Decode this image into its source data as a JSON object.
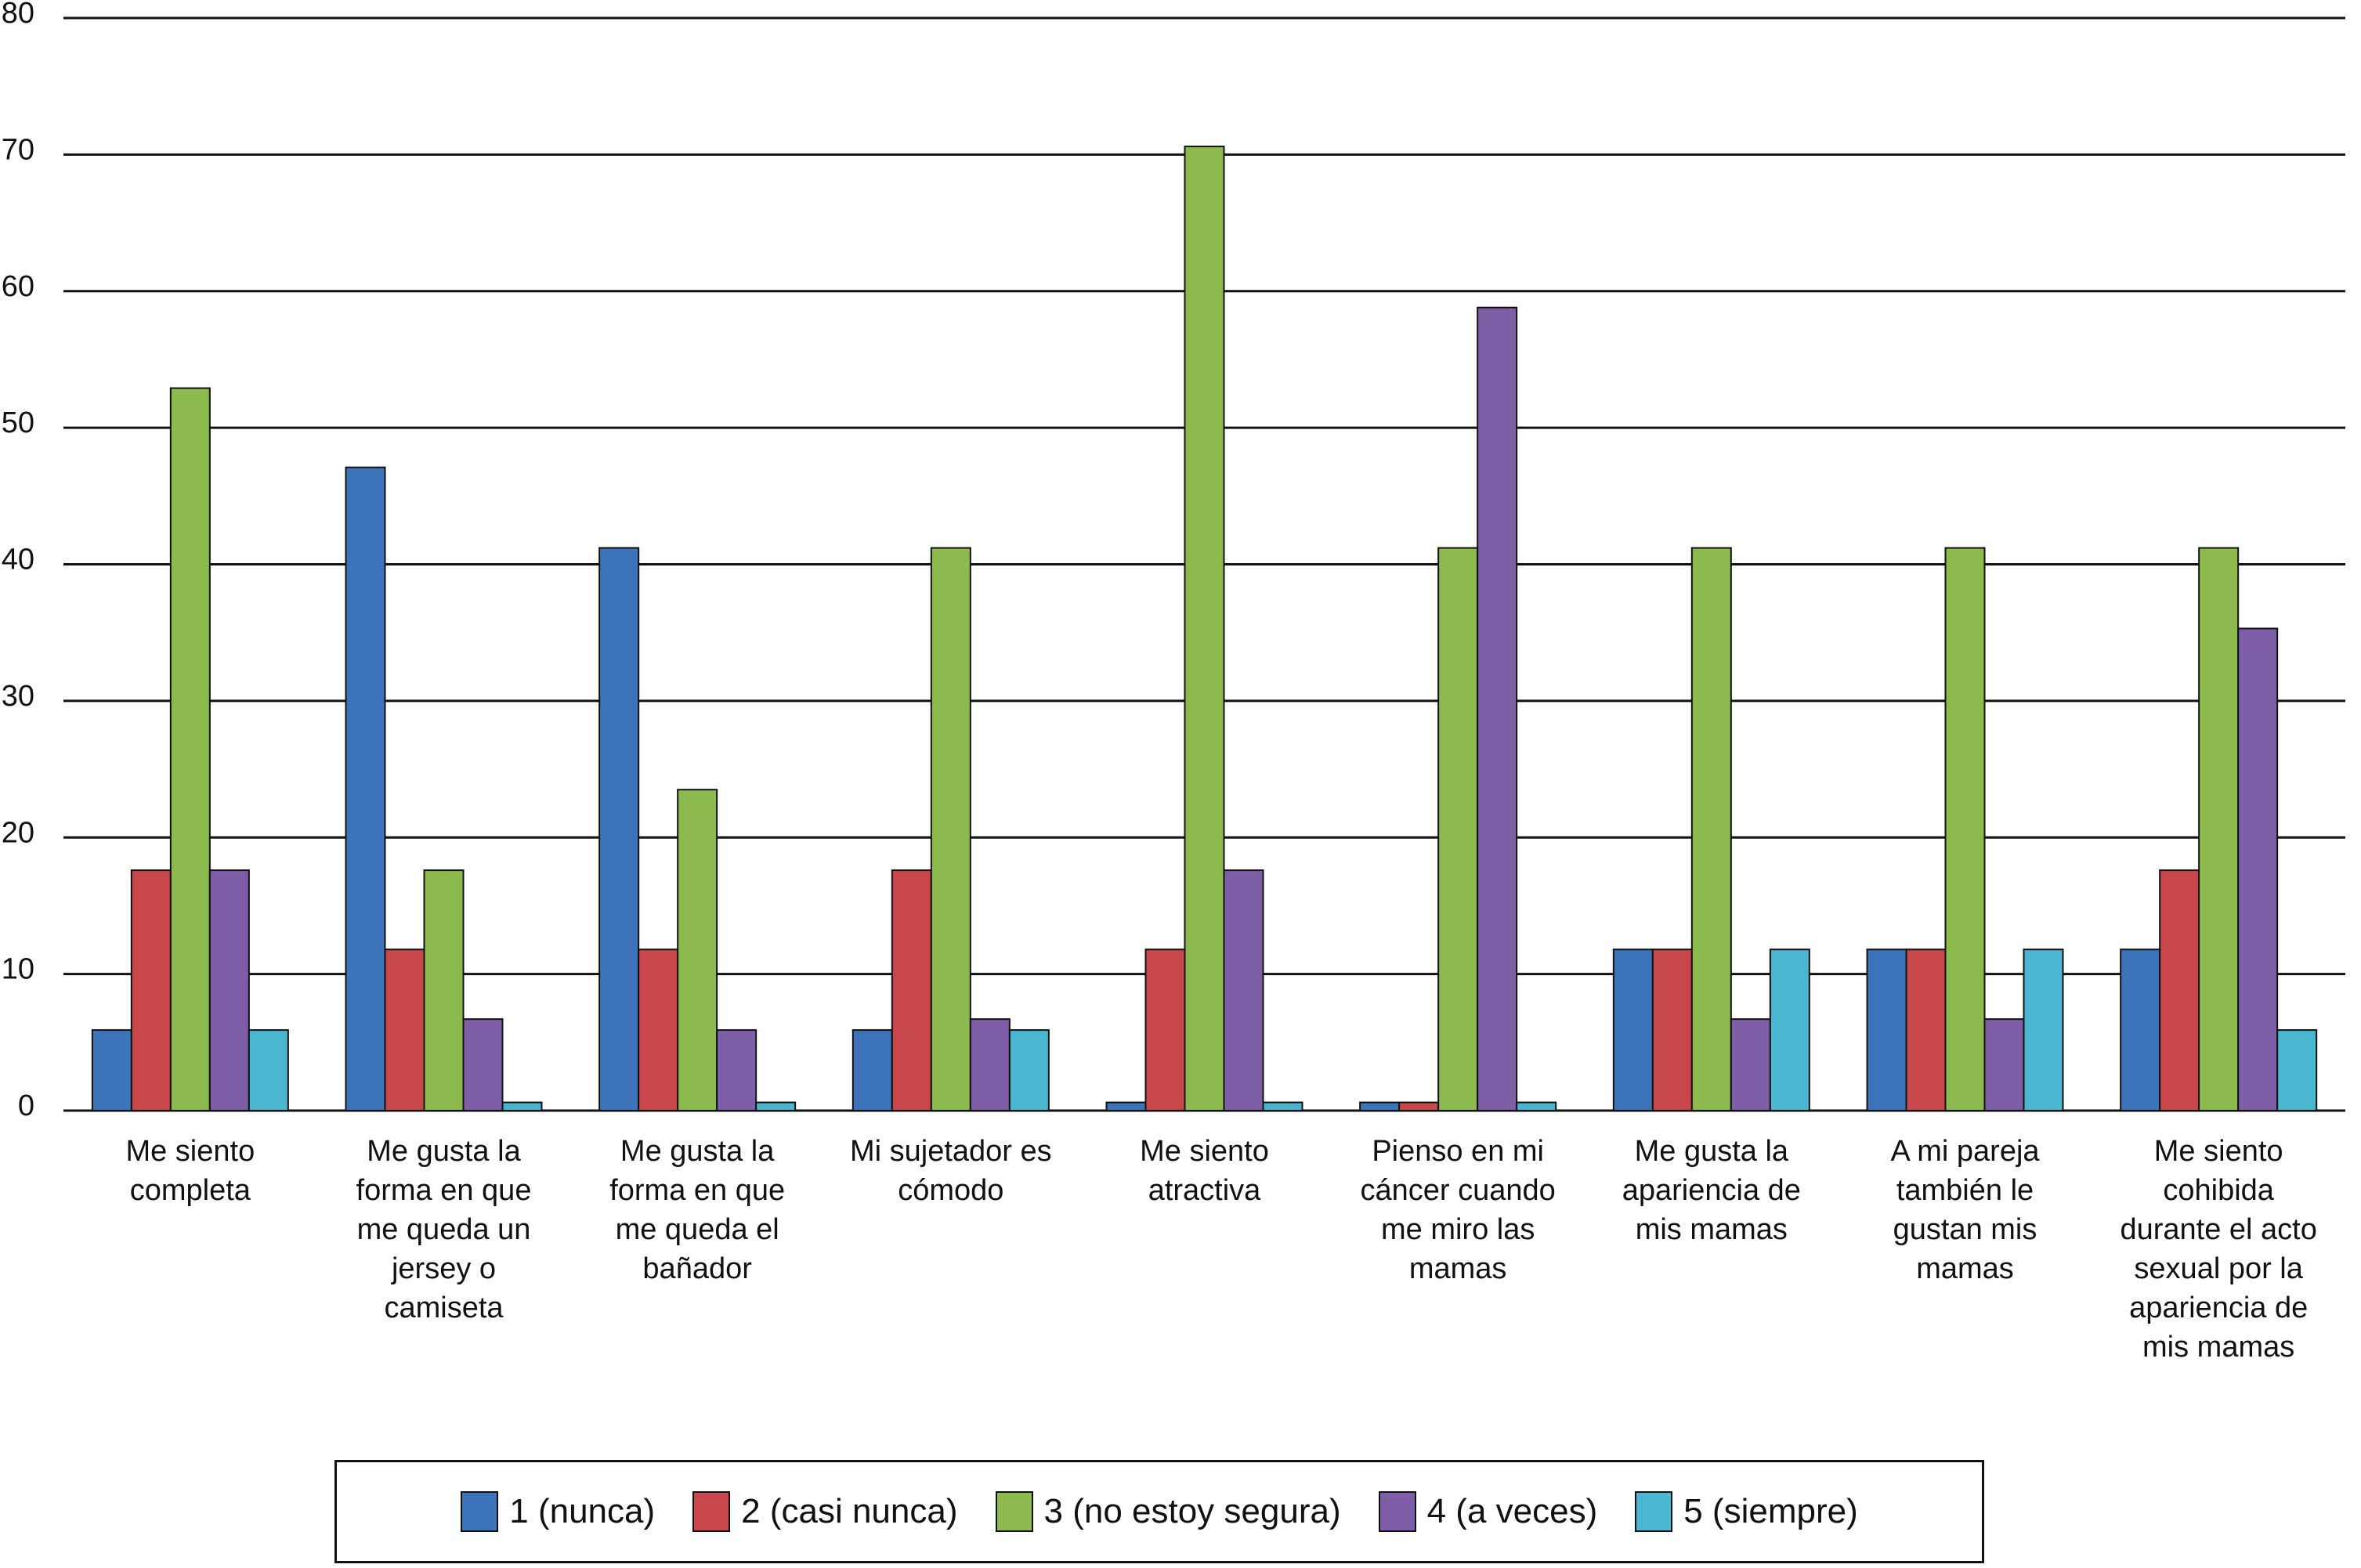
{
  "chart_data": {
    "type": "bar",
    "categories": [
      "Me siento completa",
      "Me gusta la forma en que me queda un jersey o camiseta",
      "Me gusta la forma en que me queda el bañador",
      "Mi sujetador es cómodo",
      "Me siento atractiva",
      "Pienso en mi cáncer cuando me miro las mamas",
      "Me gusta la apariencia de mis mamas",
      "A mi pareja también le gustan mis mamas",
      "Me siento cohibida durante el acto sexual por la apariencia de mis mamas"
    ],
    "series": [
      {
        "name": "1 (nunca)",
        "color": "#3d74b9",
        "values": [
          5.9,
          47.1,
          41.2,
          5.9,
          0.6,
          0.6,
          11.8,
          11.8,
          11.8
        ]
      },
      {
        "name": "2 (casi nunca)",
        "color": "#c8474a",
        "values": [
          17.6,
          11.8,
          11.8,
          17.6,
          11.8,
          0.6,
          11.8,
          11.8,
          17.6
        ]
      },
      {
        "name": "3 (no estoy segura)",
        "color": "#8dba4e",
        "values": [
          52.9,
          17.6,
          23.5,
          41.2,
          70.6,
          41.2,
          41.2,
          41.2,
          41.2
        ]
      },
      {
        "name": "4 (a veces)",
        "color": "#7d5ea7",
        "values": [
          17.6,
          6.7,
          5.9,
          6.7,
          17.6,
          58.8,
          6.7,
          6.7,
          35.3
        ]
      },
      {
        "name": "5 (siempre)",
        "color": "#4bb6d0",
        "values": [
          5.9,
          0.6,
          0.6,
          5.9,
          0.6,
          0.6,
          11.8,
          11.8,
          5.9
        ]
      }
    ],
    "ylim": [
      0,
      80
    ],
    "yticks": [
      0,
      10,
      20,
      30,
      40,
      50,
      60,
      70,
      80
    ],
    "grid": true
  }
}
